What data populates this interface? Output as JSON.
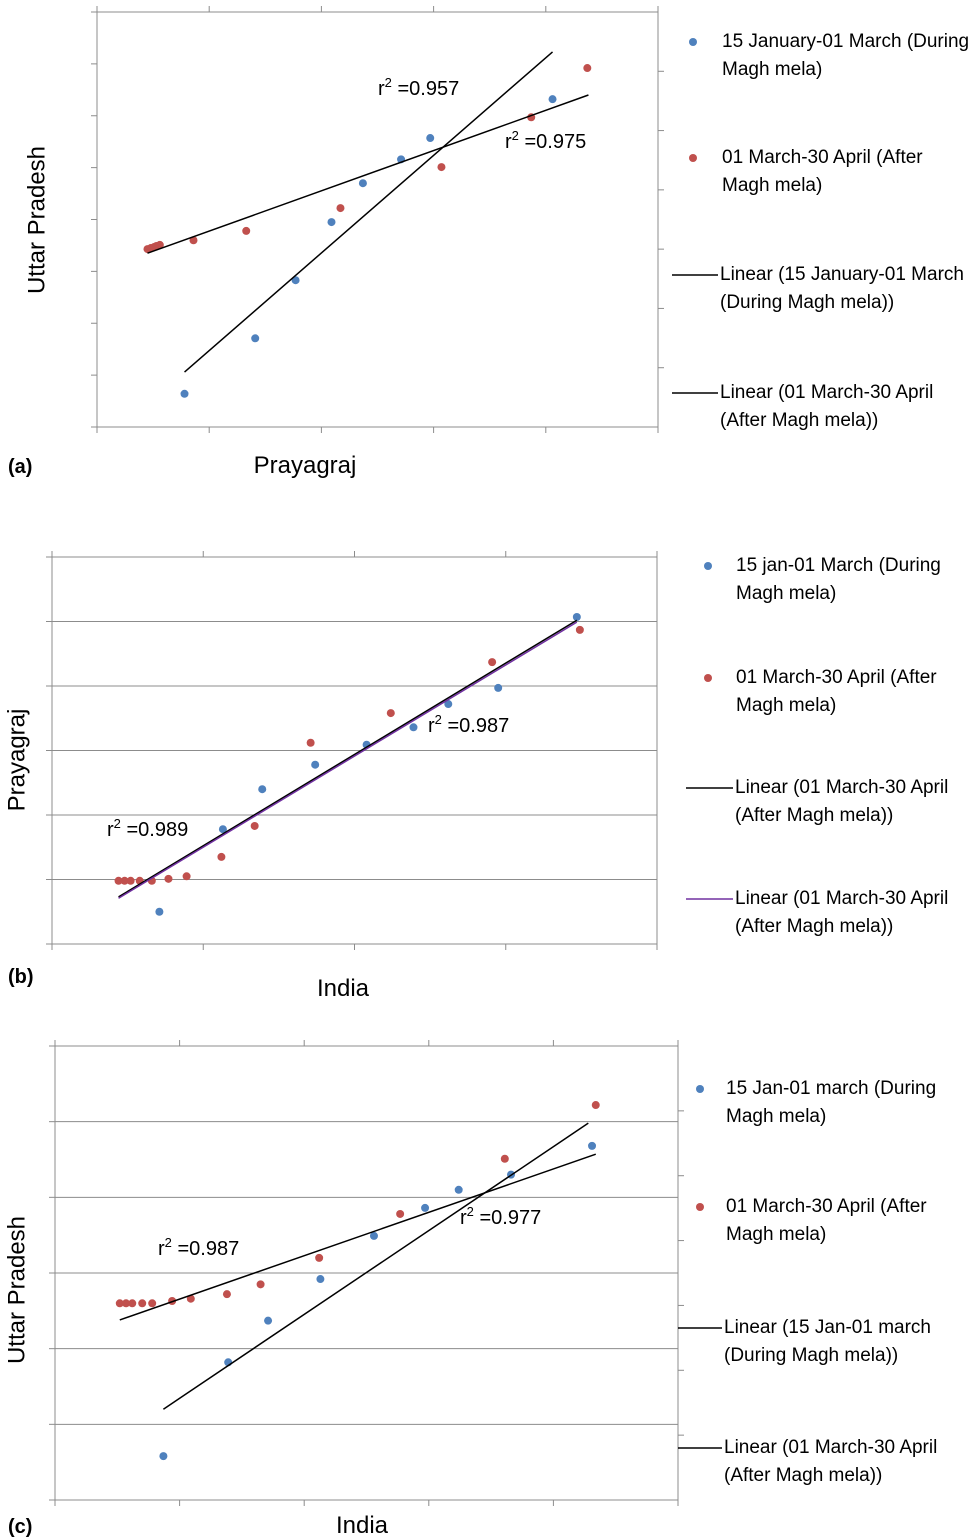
{
  "chart_data": [
    {
      "type": "scatter",
      "panel_label": "(a)",
      "x_label": "Prayagraj",
      "y_label": "Uttar Pradesh",
      "xlim": [
        0,
        5
      ],
      "ylim": [
        0,
        8
      ],
      "y2lim": [
        0,
        7
      ],
      "xticks": [
        0,
        1,
        2,
        3,
        4,
        5
      ],
      "yticks": [
        0,
        1,
        2,
        3,
        4,
        5,
        6,
        7,
        8
      ],
      "y2ticks": [
        1,
        2,
        3,
        4,
        5,
        6
      ],
      "grid": false,
      "series": [
        {
          "name": "15 January-01 March (During Magh mela)",
          "type": "scatter",
          "color": "#4f81bd",
          "x": [
            0.78,
            1.41,
            1.77,
            2.09,
            2.37,
            2.71,
            2.97,
            4.06
          ],
          "values": [
            0.64,
            1.71,
            2.83,
            3.95,
            4.7,
            5.16,
            5.57,
            6.32
          ]
        },
        {
          "name": "01 March-30 April (After Magh mela)",
          "type": "scatter",
          "color": "#c0504d",
          "x": [
            0.45,
            0.48,
            0.51,
            0.53,
            0.56,
            0.86,
            1.33,
            2.17,
            3.07,
            3.87,
            4.37
          ],
          "values": [
            3.43,
            3.45,
            3.47,
            3.49,
            3.51,
            3.6,
            3.78,
            4.22,
            5.01,
            5.97,
            6.92
          ]
        },
        {
          "name": "Linear (15 January-01 March (During Magh mela))",
          "type": "line",
          "color": "#000000",
          "x": [
            0.78,
            4.06
          ],
          "values": [
            1.06,
            7.23
          ]
        },
        {
          "name": "Linear (01 March-30 April (After Magh mela))",
          "type": "line",
          "color": "#000000",
          "x": [
            0.45,
            4.38
          ],
          "values": [
            3.35,
            6.4
          ]
        }
      ],
      "annotations": [
        {
          "text": "r",
          "sup": "2",
          "rest": " =0.957"
        },
        {
          "text": "r",
          "sup": "2",
          "rest": " =0.975"
        }
      ]
    },
    {
      "type": "scatter",
      "panel_label": "(b)",
      "x_label": "India",
      "y_label": "Prayagraj",
      "xlim": [
        0,
        4
      ],
      "ylim": [
        0,
        6
      ],
      "xticks": [
        0,
        1,
        2,
        3,
        4
      ],
      "yticks": [
        0,
        1,
        2,
        3,
        4,
        5,
        6
      ],
      "grid": true,
      "series": [
        {
          "name": "15 jan-01 March (During Magh mela)",
          "type": "scatter",
          "color": "#4f81bd",
          "x": [
            0.71,
            1.13,
            1.39,
            1.74,
            2.08,
            2.39,
            2.62,
            2.95,
            3.47
          ],
          "values": [
            0.5,
            1.78,
            2.4,
            2.78,
            3.09,
            3.36,
            3.72,
            3.97,
            5.07
          ]
        },
        {
          "name": "01 March-30 April (After Magh mela)",
          "type": "scatter",
          "color": "#c0504d",
          "x": [
            0.44,
            0.48,
            0.52,
            0.58,
            0.66,
            0.77,
            0.89,
            1.12,
            1.34,
            1.71,
            2.24,
            2.91,
            3.49
          ],
          "values": [
            0.98,
            0.98,
            0.98,
            0.98,
            0.98,
            1.01,
            1.05,
            1.35,
            1.83,
            3.12,
            3.58,
            4.37,
            4.87
          ]
        },
        {
          "name": "Linear (01 March-30 April (After Magh mela))",
          "type": "line",
          "color": "#000000",
          "x": [
            0.44,
            3.47
          ],
          "values": [
            0.73,
            5.02
          ]
        },
        {
          "name": "Linear (01 March-30 April (After Magh mela))",
          "type": "line",
          "color": "#7030a0",
          "x": [
            0.44,
            3.47
          ],
          "values": [
            0.71,
            4.99
          ]
        }
      ],
      "annotations": [
        {
          "text": "r",
          "sup": "2",
          "rest": " =0.989"
        },
        {
          "text": "r",
          "sup": "2",
          "rest": " =0.987"
        }
      ]
    },
    {
      "type": "scatter",
      "panel_label": "(c)",
      "x_label": "India",
      "y_label": "Uttar Pradesh",
      "xlim": [
        0,
        5
      ],
      "ylim": [
        0,
        6
      ],
      "y2lim": [
        0,
        7
      ],
      "xticks": [
        0,
        1,
        2,
        3,
        4,
        5
      ],
      "yticks": [
        0,
        1,
        2,
        3,
        4,
        5,
        6
      ],
      "y2ticks": [
        1,
        2,
        3,
        4,
        5,
        6
      ],
      "grid": true,
      "series": [
        {
          "name": "15 Jan-01 march (During Magh mela)",
          "type": "scatter",
          "color": "#4f81bd",
          "x": [
            0.87,
            1.39,
            1.71,
            2.13,
            2.56,
            2.97,
            3.24,
            3.66,
            4.31
          ],
          "values": [
            0.58,
            1.82,
            2.37,
            2.92,
            3.49,
            3.86,
            4.1,
            4.3,
            4.68
          ]
        },
        {
          "name": "01 March-30 April (After Magh mela)",
          "type": "scatter",
          "color": "#c0504d",
          "x": [
            0.52,
            0.57,
            0.62,
            0.7,
            0.78,
            0.94,
            1.09,
            1.38,
            1.65,
            2.12,
            2.77,
            3.61,
            4.34
          ],
          "values": [
            2.6,
            2.6,
            2.6,
            2.6,
            2.6,
            2.63,
            2.66,
            2.72,
            2.85,
            3.2,
            3.78,
            4.51,
            5.22
          ]
        },
        {
          "name": "Linear (15 Jan-01 march (During Magh mela))",
          "type": "line",
          "color": "#000000",
          "x": [
            0.87,
            4.28
          ],
          "values": [
            1.2,
            4.98
          ]
        },
        {
          "name": "Linear (01 March-30 April (After Magh mela))",
          "type": "line",
          "color": "#000000",
          "x": [
            0.52,
            4.34
          ],
          "values": [
            2.38,
            4.57
          ]
        }
      ],
      "annotations": [
        {
          "text": "r",
          "sup": "2",
          "rest": " =0.987"
        },
        {
          "text": "r",
          "sup": "2",
          "rest": " =0.977"
        }
      ]
    }
  ]
}
